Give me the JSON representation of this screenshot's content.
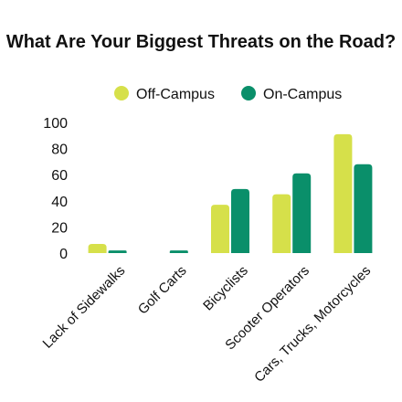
{
  "chart_data": {
    "type": "bar",
    "title": "What Are Your Biggest Threats on the Road?",
    "xlabel": "",
    "ylabel": "",
    "categories": [
      "Lack of Sidewalks",
      "Golf Carts",
      "Bicyclists",
      "Scooter Operators",
      "Cars, Trucks, Motorcycles"
    ],
    "series": [
      {
        "name": "Off-Campus",
        "color": "#d6e04a",
        "values": [
          7,
          0,
          37,
          45,
          91
        ]
      },
      {
        "name": "On-Campus",
        "color": "#0a8f6a",
        "values": [
          2,
          2,
          49,
          61,
          68
        ]
      }
    ],
    "ylim": [
      0,
      100
    ],
    "yticks": [
      "0",
      "20",
      "40",
      "60",
      "80",
      "100"
    ],
    "grid": false,
    "legend_position": "top-center"
  }
}
